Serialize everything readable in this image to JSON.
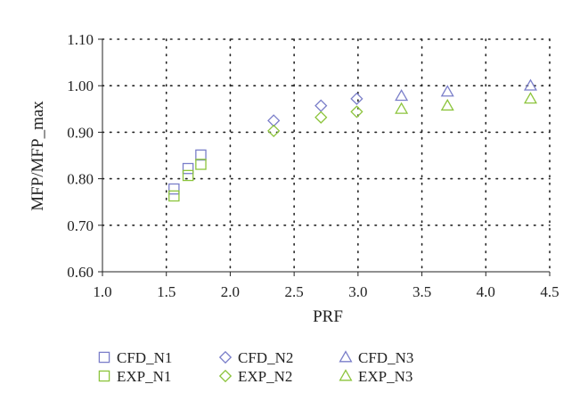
{
  "chart_data": {
    "type": "scatter",
    "title": "",
    "xlabel": "PRF",
    "ylabel": "MFP/MFP_max",
    "xlim": [
      1.0,
      4.5
    ],
    "ylim": [
      0.6,
      1.1
    ],
    "xticks": [
      1.0,
      1.5,
      2.0,
      2.5,
      3.0,
      3.5,
      4.0,
      4.5
    ],
    "yticks": [
      0.6,
      0.7,
      0.8,
      0.9,
      1.0,
      1.1
    ],
    "xtick_labels": [
      "1.0",
      "1.5",
      "2.0",
      "2.5",
      "3.0",
      "3.5",
      "4.0",
      "4.5"
    ],
    "ytick_labels": [
      "0.60",
      "0.70",
      "0.80",
      "0.90",
      "1.00",
      "1.10"
    ],
    "grid": true,
    "legend_position": "bottom",
    "series": [
      {
        "name": "CFD_N1",
        "marker": "square",
        "color": "#7a7ec9",
        "x": [
          1.56,
          1.67,
          1.77
        ],
        "y": [
          0.778,
          0.822,
          0.851
        ]
      },
      {
        "name": "EXP_N1",
        "marker": "square",
        "color": "#8cc43c",
        "x": [
          1.56,
          1.67,
          1.77
        ],
        "y": [
          0.763,
          0.807,
          0.831
        ]
      },
      {
        "name": "CFD_N2",
        "marker": "diamond",
        "color": "#7a7ec9",
        "x": [
          2.34,
          2.71,
          2.99
        ],
        "y": [
          0.925,
          0.957,
          0.972
        ]
      },
      {
        "name": "EXP_N2",
        "marker": "diamond",
        "color": "#8cc43c",
        "x": [
          2.34,
          2.71,
          2.99
        ],
        "y": [
          0.903,
          0.932,
          0.944
        ]
      },
      {
        "name": "CFD_N3",
        "marker": "triangle",
        "color": "#7a7ec9",
        "x": [
          3.34,
          3.7,
          4.35
        ],
        "y": [
          0.978,
          0.987,
          1.0
        ]
      },
      {
        "name": "EXP_N3",
        "marker": "triangle",
        "color": "#8cc43c",
        "x": [
          3.34,
          3.7,
          4.35
        ],
        "y": [
          0.95,
          0.957,
          0.972
        ]
      }
    ]
  }
}
